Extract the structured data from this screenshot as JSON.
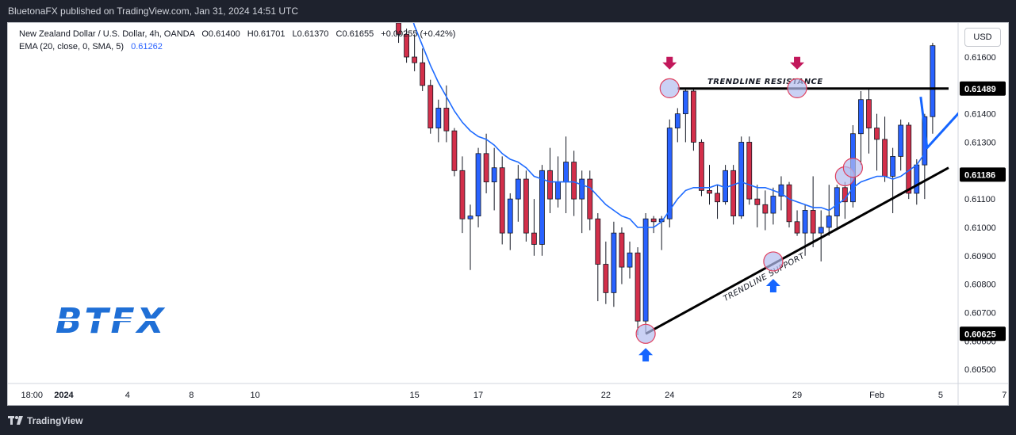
{
  "header": {
    "published": "BluetonaFX published on TradingView.com, Jan 31, 2024 14:51 UTC"
  },
  "legend": {
    "symbol": "New Zealand Dollar / U.S. Dollar, 4h, OANDA",
    "open": "O0.61400",
    "high": "H0.61701",
    "low": "L0.61370",
    "close": "C0.61655",
    "change": "+0.00255 (+0.42%)",
    "ema_label": "EMA (20, close, 0, SMA, 5)",
    "ema_value": "0.61262"
  },
  "currency_button": "USD",
  "footer": {
    "brand": "TradingView"
  },
  "watermark": "BTFX",
  "colors": {
    "up": "#2962ff",
    "down": "#d32f4a",
    "ema": "#1e6bff",
    "arrow_down": "#c2185b",
    "arrow_up": "#1565ff",
    "circle_fill": "#b3bdf0",
    "circle_stroke": "#e0405e"
  },
  "chart_data": {
    "type": "candlestick",
    "y_axis": {
      "range": [
        0.6045,
        0.6172
      ],
      "ticks": [
        "0.60500",
        "0.60600",
        "0.60700",
        "0.60800",
        "0.60900",
        "0.61000",
        "0.61100",
        "0.61200",
        "0.61300",
        "0.61400",
        "0.61500",
        "0.61600"
      ],
      "tick_values": [
        0.605,
        0.606,
        0.607,
        0.608,
        0.609,
        0.61,
        0.611,
        0.612,
        0.613,
        0.614,
        0.615,
        0.616
      ],
      "price_labels": [
        {
          "label": "0.61489",
          "value": 0.61489
        },
        {
          "label": "0.61186",
          "value": 0.61186
        },
        {
          "label": "0.60625",
          "value": 0.60625
        }
      ]
    },
    "x_axis": {
      "ticks": [
        "18:00",
        "2024",
        "4",
        "8",
        "10",
        "15",
        "17",
        "22",
        "24",
        "29",
        "Feb",
        "5",
        "7"
      ],
      "tick_index": [
        -55,
        -51,
        -43,
        -35,
        -27,
        -7,
        1,
        17,
        25,
        41,
        51,
        59,
        67
      ]
    },
    "candles": [
      [
        0.6172,
        0.6178,
        0.6165,
        0.6168
      ],
      [
        0.6168,
        0.617,
        0.6158,
        0.616
      ],
      [
        0.616,
        0.6168,
        0.6155,
        0.6158
      ],
      [
        0.6158,
        0.6163,
        0.6148,
        0.615
      ],
      [
        0.615,
        0.6152,
        0.6133,
        0.6135
      ],
      [
        0.6135,
        0.6145,
        0.613,
        0.6142
      ],
      [
        0.6142,
        0.615,
        0.613,
        0.6134
      ],
      [
        0.6134,
        0.6135,
        0.6118,
        0.612
      ],
      [
        0.612,
        0.6125,
        0.6098,
        0.6103
      ],
      [
        0.6103,
        0.6108,
        0.6085,
        0.6104
      ],
      [
        0.6104,
        0.6128,
        0.61,
        0.6126
      ],
      [
        0.6126,
        0.6133,
        0.6112,
        0.6116
      ],
      [
        0.6116,
        0.6128,
        0.6106,
        0.6121
      ],
      [
        0.6121,
        0.6125,
        0.6094,
        0.6098
      ],
      [
        0.6098,
        0.6112,
        0.6092,
        0.611
      ],
      [
        0.611,
        0.6122,
        0.6102,
        0.6117
      ],
      [
        0.6117,
        0.612,
        0.6095,
        0.6098
      ],
      [
        0.6098,
        0.611,
        0.609,
        0.6094
      ],
      [
        0.6094,
        0.6122,
        0.609,
        0.612
      ],
      [
        0.612,
        0.6128,
        0.6105,
        0.611
      ],
      [
        0.611,
        0.6125,
        0.6107,
        0.6116
      ],
      [
        0.6116,
        0.6132,
        0.6105,
        0.6123
      ],
      [
        0.6123,
        0.6127,
        0.6104,
        0.611
      ],
      [
        0.611,
        0.612,
        0.6098,
        0.6117
      ],
      [
        0.6117,
        0.612,
        0.6099,
        0.6103
      ],
      [
        0.6103,
        0.6105,
        0.6074,
        0.6087
      ],
      [
        0.6087,
        0.6095,
        0.6073,
        0.6077
      ],
      [
        0.6077,
        0.6102,
        0.6072,
        0.6098
      ],
      [
        0.6098,
        0.61,
        0.608,
        0.6086
      ],
      [
        0.6086,
        0.6095,
        0.6082,
        0.6091
      ],
      [
        0.6091,
        0.6093,
        0.6062,
        0.6067
      ],
      [
        0.6067,
        0.6105,
        0.6063,
        0.6103
      ],
      [
        0.6103,
        0.6104,
        0.6098,
        0.6102
      ],
      [
        0.6102,
        0.6104,
        0.6092,
        0.6103
      ],
      [
        0.6103,
        0.6138,
        0.61,
        0.6135
      ],
      [
        0.6135,
        0.6142,
        0.613,
        0.614
      ],
      [
        0.614,
        0.6149,
        0.613,
        0.6148
      ],
      [
        0.6148,
        0.6149,
        0.6127,
        0.613
      ],
      [
        0.613,
        0.6131,
        0.6111,
        0.6113
      ],
      [
        0.6113,
        0.6122,
        0.6108,
        0.6112
      ],
      [
        0.6112,
        0.6115,
        0.6103,
        0.6109
      ],
      [
        0.6109,
        0.6122,
        0.6108,
        0.612
      ],
      [
        0.612,
        0.6122,
        0.6101,
        0.6104
      ],
      [
        0.6104,
        0.6132,
        0.6103,
        0.613
      ],
      [
        0.613,
        0.6132,
        0.6108,
        0.611
      ],
      [
        0.611,
        0.6115,
        0.61,
        0.6108
      ],
      [
        0.6108,
        0.6113,
        0.6099,
        0.6105
      ],
      [
        0.6105,
        0.6114,
        0.6101,
        0.6111
      ],
      [
        0.6111,
        0.6118,
        0.6106,
        0.6115
      ],
      [
        0.6115,
        0.6116,
        0.61,
        0.6102
      ],
      [
        0.6102,
        0.6106,
        0.6097,
        0.6098
      ],
      [
        0.6098,
        0.6108,
        0.609,
        0.6106
      ],
      [
        0.6106,
        0.6118,
        0.6093,
        0.6098
      ],
      [
        0.6098,
        0.6106,
        0.6088,
        0.61
      ],
      [
        0.61,
        0.6115,
        0.6097,
        0.6104
      ],
      [
        0.6104,
        0.6115,
        0.61,
        0.6114
      ],
      [
        0.6114,
        0.6116,
        0.6103,
        0.6109
      ],
      [
        0.6109,
        0.6136,
        0.6107,
        0.6133
      ],
      [
        0.6133,
        0.6148,
        0.6122,
        0.6145
      ],
      [
        0.6145,
        0.6149,
        0.6126,
        0.6135
      ],
      [
        0.6135,
        0.614,
        0.612,
        0.6131
      ],
      [
        0.6131,
        0.6139,
        0.6116,
        0.6118
      ],
      [
        0.6118,
        0.6128,
        0.6105,
        0.6125
      ],
      [
        0.6125,
        0.6138,
        0.612,
        0.6136
      ],
      [
        0.6136,
        0.6137,
        0.611,
        0.6112
      ],
      [
        0.6112,
        0.6124,
        0.6108,
        0.6122
      ],
      [
        0.6122,
        0.614,
        0.611,
        0.6139
      ],
      [
        0.6139,
        0.6165,
        0.6133,
        0.6164
      ]
    ],
    "candle_first_index": -9,
    "ema": [
      0.619,
      0.618,
      0.6171,
      0.6164,
      0.6157,
      0.6151,
      0.6146,
      0.6141,
      0.6137,
      0.6134,
      0.6132,
      0.6131,
      0.6129,
      0.6126,
      0.6124,
      0.6123,
      0.6121,
      0.6118,
      0.6117,
      0.6116,
      0.6116,
      0.6116,
      0.6116,
      0.6115,
      0.6114,
      0.6111,
      0.6108,
      0.6106,
      0.6104,
      0.6103,
      0.61,
      0.61,
      0.61,
      0.6102,
      0.6106,
      0.611,
      0.6113,
      0.6114,
      0.6114,
      0.6114,
      0.6115,
      0.6114,
      0.6115,
      0.6116,
      0.6115,
      0.6114,
      0.6114,
      0.6113,
      0.6112,
      0.611,
      0.6109,
      0.6108,
      0.6107,
      0.6107,
      0.6106,
      0.6108,
      0.611,
      0.6114,
      0.6116,
      0.6117,
      0.6118,
      0.6118,
      0.6117,
      0.6118,
      0.612,
      0.6122,
      0.6126
    ],
    "annotations": {
      "resistance": {
        "label": "TRENDLINE RESISTANCE",
        "value": 0.61489,
        "x_from": 26,
        "x_to": 60
      },
      "support": {
        "label": "TRENDLINE SUPPORT",
        "from": [
          22,
          0.60625
        ],
        "to": [
          60,
          0.6121
        ]
      },
      "circles": [
        [
          22,
          0.60625
        ],
        [
          25,
          0.6149
        ],
        [
          38,
          0.6088
        ],
        [
          41,
          0.6149
        ],
        [
          47,
          0.6118
        ],
        [
          48,
          0.6121
        ]
      ],
      "down_arrows": [
        25,
        41
      ],
      "up_arrows": [
        22,
        38
      ]
    }
  }
}
